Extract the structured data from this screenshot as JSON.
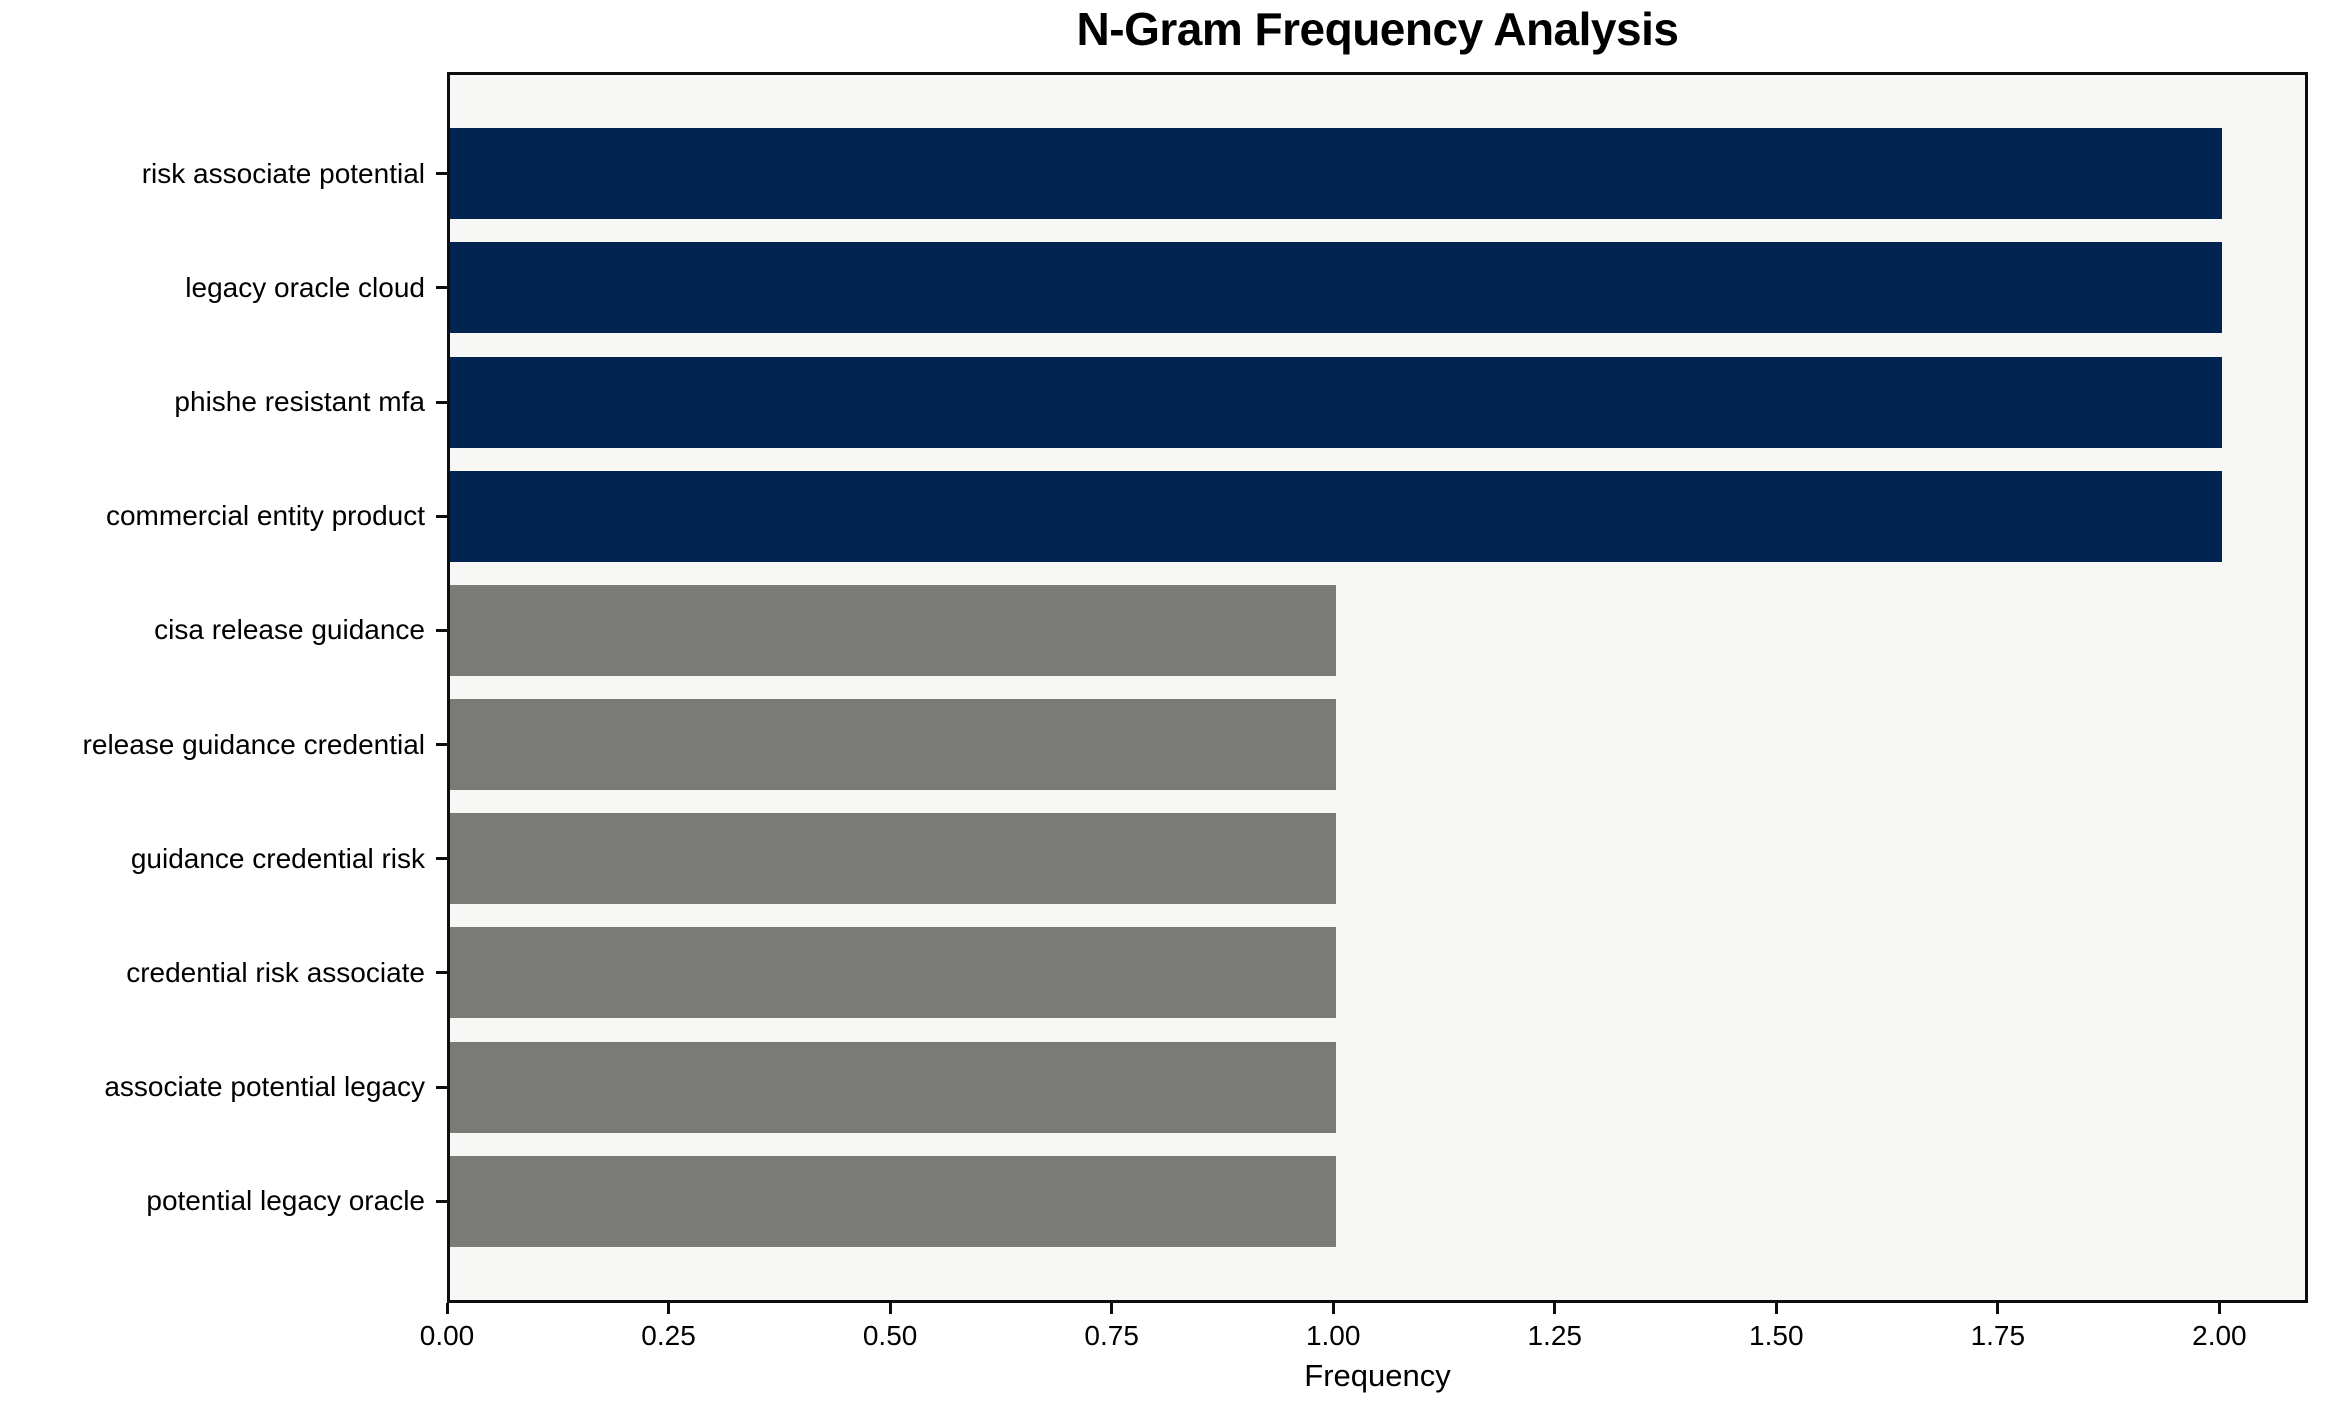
{
  "chart_data": {
    "type": "bar",
    "orientation": "horizontal",
    "title": "N-Gram Frequency Analysis",
    "xlabel": "Frequency",
    "ylabel": "",
    "categories": [
      "risk associate potential",
      "legacy oracle cloud",
      "phishe resistant mfa",
      "commercial entity product",
      "cisa release guidance",
      "release guidance credential",
      "guidance credential risk",
      "credential risk associate",
      "associate potential legacy",
      "potential legacy oracle"
    ],
    "values": [
      2,
      2,
      2,
      2,
      1,
      1,
      1,
      1,
      1,
      1
    ],
    "bar_colors": [
      "#012450",
      "#012450",
      "#012450",
      "#012450",
      "#7a7a77",
      "#7a7a77",
      "#7a7a77",
      "#7a7a77",
      "#7a7a77",
      "#7a7a77"
    ],
    "xlim": [
      0,
      2.1
    ],
    "xticks": [
      0,
      0.25,
      0.5,
      0.75,
      1.0,
      1.25,
      1.5,
      1.75,
      2.0
    ],
    "xtick_labels": [
      "0.00",
      "0.25",
      "0.50",
      "0.75",
      "1.00",
      "1.25",
      "1.50",
      "1.75",
      "2.00"
    ],
    "grid": false,
    "legend": null,
    "colors": {
      "highlight_bar": "#012450",
      "default_bar": "#7a7a77",
      "plot_background": "#f7f7f6",
      "figure_background": "#ffffff",
      "spine": "#0d0d0d",
      "text": "#000000"
    }
  }
}
